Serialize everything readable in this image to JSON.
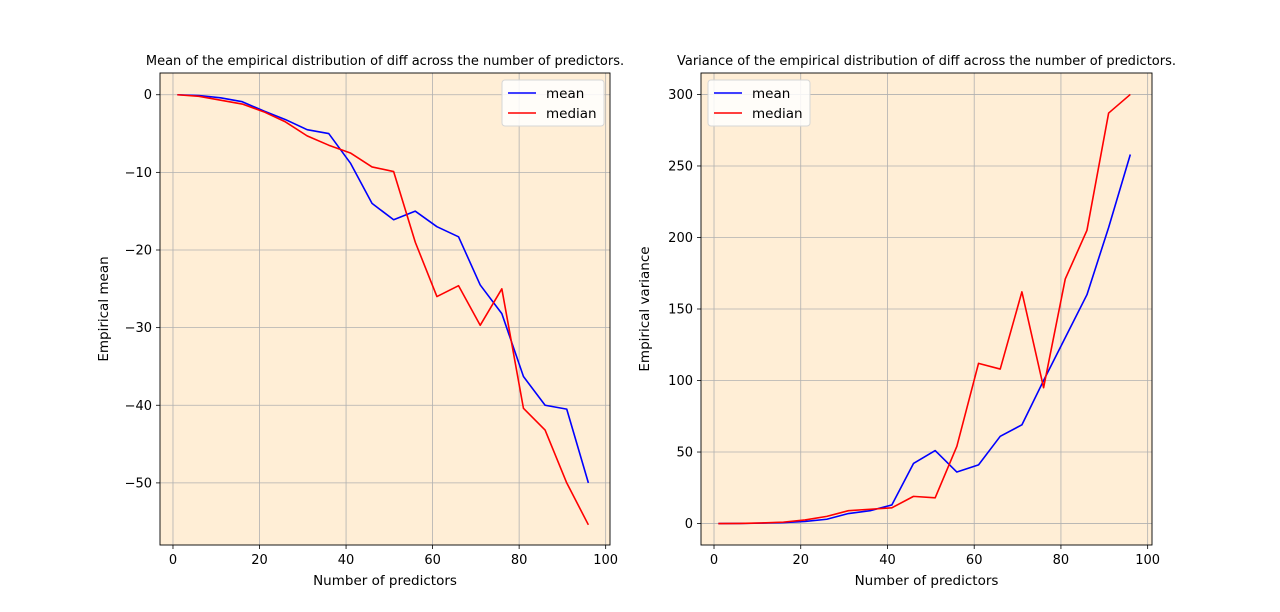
{
  "chart_data": [
    {
      "type": "line",
      "title": "Mean of the empirical distribution of diff across the number of predictors.",
      "xlabel": "Number of predictors",
      "ylabel": "Empirical mean",
      "xlim": [
        -3,
        101
      ],
      "ylim": [
        -58,
        2.8
      ],
      "xticks": [
        0,
        20,
        40,
        60,
        80,
        100
      ],
      "yticks": [
        0,
        -10,
        -20,
        -30,
        -40,
        -50
      ],
      "ytick_labels": [
        "0",
        "−10",
        "−20",
        "−30",
        "−40",
        "−50"
      ],
      "grid": true,
      "legend": "top-right",
      "background": "#ffeed6",
      "x": [
        1,
        6,
        11,
        16,
        21,
        26,
        31,
        36,
        41,
        46,
        51,
        56,
        61,
        66,
        71,
        76,
        81,
        86,
        91,
        96
      ],
      "series": [
        {
          "name": "mean",
          "color": "#0000ff",
          "values": [
            0,
            -0.1,
            -0.4,
            -0.9,
            -2.1,
            -3.2,
            -4.5,
            -5.0,
            -8.8,
            -14.0,
            -16.1,
            -15.0,
            -17.0,
            -18.3,
            -24.5,
            -28.2,
            -36.3,
            -40.0,
            -40.5,
            -50.0
          ]
        },
        {
          "name": "median",
          "color": "#ff0000",
          "values": [
            0,
            -0.2,
            -0.7,
            -1.2,
            -2.2,
            -3.5,
            -5.3,
            -6.5,
            -7.5,
            -9.3,
            -9.9,
            -19.0,
            -26.0,
            -24.6,
            -29.7,
            -25.0,
            -40.4,
            -43.2,
            -50.0,
            -55.4
          ]
        }
      ]
    },
    {
      "type": "line",
      "title": "Variance of the empirical distribution of diff across the number of predictors.",
      "xlabel": "Number of predictors",
      "ylabel": "Empirical variance",
      "xlim": [
        -3,
        101
      ],
      "ylim": [
        -15,
        315
      ],
      "xticks": [
        0,
        20,
        40,
        60,
        80,
        100
      ],
      "yticks": [
        0,
        50,
        100,
        150,
        200,
        250,
        300
      ],
      "ytick_labels": [
        "0",
        "50",
        "100",
        "150",
        "200",
        "250",
        "300"
      ],
      "grid": true,
      "legend": "top-left",
      "background": "#ffeed6",
      "x": [
        1,
        6,
        11,
        16,
        21,
        26,
        31,
        36,
        41,
        46,
        51,
        56,
        61,
        66,
        71,
        76,
        81,
        86,
        91,
        96
      ],
      "series": [
        {
          "name": "mean",
          "color": "#0000ff",
          "values": [
            0,
            0.1,
            0.3,
            0.7,
            1.5,
            3.0,
            7.0,
            9.0,
            13.0,
            42.0,
            51.0,
            36.0,
            41.0,
            61.0,
            69.0,
            100.0,
            130.0,
            160.0,
            207.0,
            258.0
          ]
        },
        {
          "name": "median",
          "color": "#ff0000",
          "values": [
            0,
            0.1,
            0.4,
            1.0,
            2.5,
            5.0,
            9.0,
            10.0,
            11.0,
            19.0,
            18.0,
            54.0,
            112.0,
            108.0,
            162.0,
            95.0,
            171.0,
            205.0,
            287.0,
            300.0
          ]
        }
      ]
    }
  ]
}
